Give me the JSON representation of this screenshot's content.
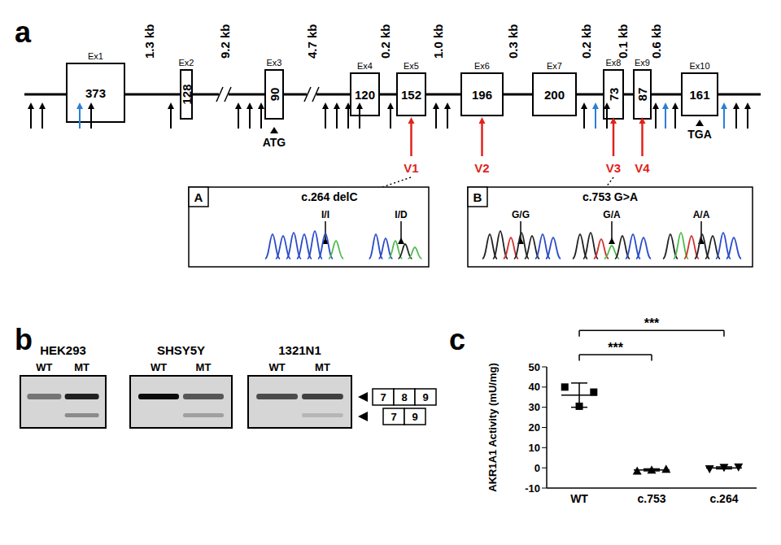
{
  "panels": {
    "a": {
      "label": "a",
      "exons": [
        {
          "name": "Ex1",
          "length": 373
        },
        {
          "name": "Ex2",
          "length": 128
        },
        {
          "name": "Ex3",
          "length": 90
        },
        {
          "name": "Ex4",
          "length": 120
        },
        {
          "name": "Ex5",
          "length": 152
        },
        {
          "name": "Ex6",
          "length": 196
        },
        {
          "name": "Ex7",
          "length": 200
        },
        {
          "name": "Ex8",
          "length": 73
        },
        {
          "name": "Ex9",
          "length": 87
        },
        {
          "name": "Ex10",
          "length": 161
        }
      ],
      "introns": [
        "1.3 kb",
        "9.2 kb",
        "4.7 kb",
        "0.2 kb",
        "1.0 kb",
        "0.3 kb",
        "0.2 kb",
        "0.1 kb",
        "0.6 kb"
      ],
      "start_codon": "ATG",
      "stop_codon": "TGA",
      "variants": [
        "V1",
        "V2",
        "V3",
        "V4"
      ],
      "insets": [
        {
          "label": "A",
          "title": "c.264 delC",
          "genotypes": [
            "I/I",
            "I/D"
          ]
        },
        {
          "label": "B",
          "title": "c.753 G>A",
          "genotypes": [
            "G/G",
            "G/A",
            "A/A"
          ]
        }
      ]
    },
    "b": {
      "label": "b",
      "cell_lines": [
        "HEK293",
        "SHSY5Y",
        "1321N1"
      ],
      "lanes": [
        "WT",
        "MT"
      ],
      "products": [
        [
          "7",
          "8",
          "9"
        ],
        [
          "7",
          "9"
        ]
      ]
    },
    "c": {
      "label": "c"
    }
  },
  "chart_data": {
    "type": "scatter",
    "ylabel": "AKR1A1 Activity (mU/mg)",
    "categories": [
      "WT",
      "c.753",
      "c.264"
    ],
    "series": [
      {
        "marker": "square",
        "values": [
          40,
          30.5,
          37.5
        ],
        "mean": 36,
        "sd": 6
      },
      {
        "marker": "triangle",
        "values": [
          -1.5,
          -1,
          -0.6
        ],
        "mean": -1,
        "sd": 0.5
      },
      {
        "marker": "triangle-down",
        "values": [
          -0.5,
          0.2,
          0.4
        ],
        "mean": 0,
        "sd": 0.5
      }
    ],
    "color": "#000000",
    "ylim": [
      -10,
      50
    ],
    "yticks": [
      -10,
      0,
      10,
      20,
      30,
      40,
      50
    ],
    "grid": false,
    "annotations": [
      {
        "text": "***",
        "from": "WT",
        "to": "c.753",
        "y": 56
      },
      {
        "text": "***",
        "from": "WT",
        "to": "c.264",
        "y": 68
      }
    ]
  }
}
